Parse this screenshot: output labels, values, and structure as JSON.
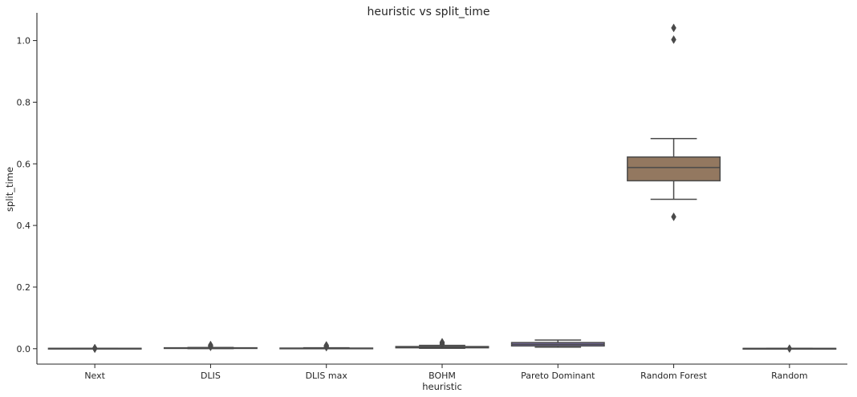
{
  "chart_data": {
    "type": "box",
    "title": "heuristic vs split_time",
    "xlabel": "heuristic",
    "ylabel": "split_time",
    "ylim": [
      -0.05,
      1.09
    ],
    "yticks": [
      0.0,
      0.2,
      0.4,
      0.6,
      0.8,
      1.0
    ],
    "ytick_labels": [
      "0.0",
      "0.2",
      "0.4",
      "0.6",
      "0.8",
      "1.0"
    ],
    "grid": false,
    "categories": [
      "Next",
      "DLIS",
      "DLIS max",
      "BOHM",
      "Pareto Dominant",
      "Random Forest",
      "Random"
    ],
    "boxes": [
      {
        "category": "Next",
        "whislo": 0.0005,
        "q1": 0.0008,
        "median": 0.001,
        "q3": 0.0012,
        "whishi": 0.0015,
        "fliers": [
          0.0,
          0.001,
          0.002
        ],
        "color": "#4c72b0"
      },
      {
        "category": "DLIS",
        "whislo": 0.0005,
        "q1": 0.0012,
        "median": 0.002,
        "q3": 0.003,
        "whishi": 0.004,
        "fliers": [
          0.006,
          0.008,
          0.01,
          0.012
        ],
        "color": "#dd8452"
      },
      {
        "category": "DLIS max",
        "whislo": 0.0005,
        "q1": 0.001,
        "median": 0.0015,
        "q3": 0.002,
        "whishi": 0.003,
        "fliers": [
          0.005,
          0.007,
          0.009,
          0.011
        ],
        "color": "#55a868"
      },
      {
        "category": "BOHM",
        "whislo": 0.0015,
        "q1": 0.003,
        "median": 0.005,
        "q3": 0.007,
        "whishi": 0.011,
        "fliers": [
          0.014,
          0.017,
          0.019,
          0.021
        ],
        "color": "#c44e52"
      },
      {
        "category": "Pareto Dominant",
        "whislo": 0.005,
        "q1": 0.009,
        "median": 0.014,
        "q3": 0.02,
        "whishi": 0.028,
        "fliers": [],
        "color": "#8172b3"
      },
      {
        "category": "Random Forest",
        "whislo": 0.485,
        "q1": 0.545,
        "median": 0.588,
        "q3": 0.622,
        "whishi": 0.682,
        "fliers": [
          0.428,
          1.003,
          1.041
        ],
        "color": "#937860"
      },
      {
        "category": "Random",
        "whislo": 0.0003,
        "q1": 0.0006,
        "median": 0.0008,
        "q3": 0.001,
        "whishi": 0.0012,
        "fliers": [
          0.0005
        ],
        "color": "#da8bc3"
      }
    ]
  }
}
